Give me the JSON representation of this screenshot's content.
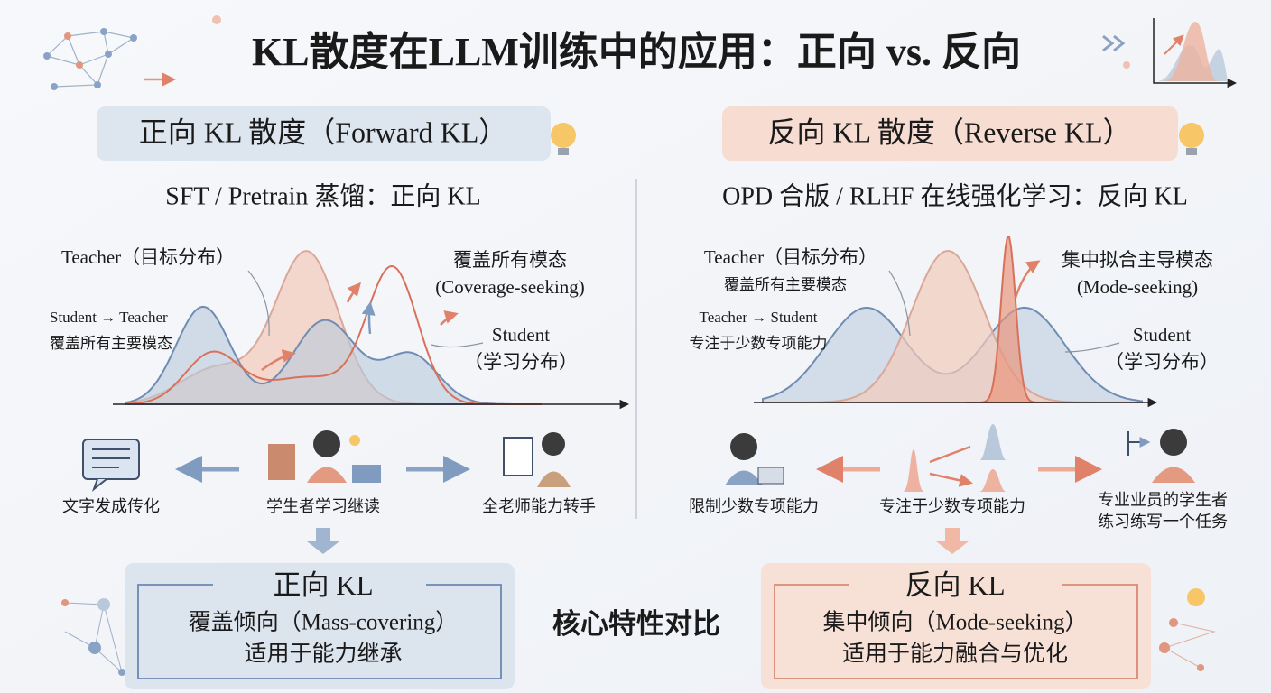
{
  "title": "KL散度在LLM训练中的应用：正向 vs. 反向",
  "left": {
    "header": "正向 KL 散度（Forward KL）",
    "subtitle": "SFT / Pretrain 蒸馏：正向 KL",
    "labels": {
      "teacher": "Teacher（目标分布）",
      "direction": "Student → Teacher",
      "direction_note": "覆盖所有主要模态",
      "mode": "覆盖所有模态",
      "mode_en": "(Coverage-seeking)",
      "student": "Student",
      "student_note": "（学习分布）"
    },
    "icons": [
      "文字发成传化",
      "学生者学习继读",
      "全老师能力转手"
    ],
    "summary": {
      "title": "正向 KL",
      "line1": "覆盖倾向（Mass-covering）",
      "line2": "适用于能力继承"
    }
  },
  "right": {
    "header": "反向 KL 散度（Reverse KL）",
    "subtitle": "OPD 合版 / RLHF 在线强化学习：反向 KL",
    "labels": {
      "teacher": "Teacher（目标分布）",
      "teacher_note": "覆盖所有主要模态",
      "direction": "Teacher → Student",
      "direction_note": "专注于少数专项能力",
      "mode": "集中拟合主导模态",
      "mode_en": "(Mode-seeking)",
      "student": "Student",
      "student_note": "（学习分布）"
    },
    "icons": [
      "限制少数专项能力",
      "专注于少数专项能力",
      [
        "专业业员的学生者",
        "练习练写一个任务"
      ]
    ],
    "summary": {
      "title": "反向 KL",
      "line1": "集中倾向（Mode-seeking）",
      "line2": "适用于能力融合与优化"
    }
  },
  "center": "核心特性对比"
}
